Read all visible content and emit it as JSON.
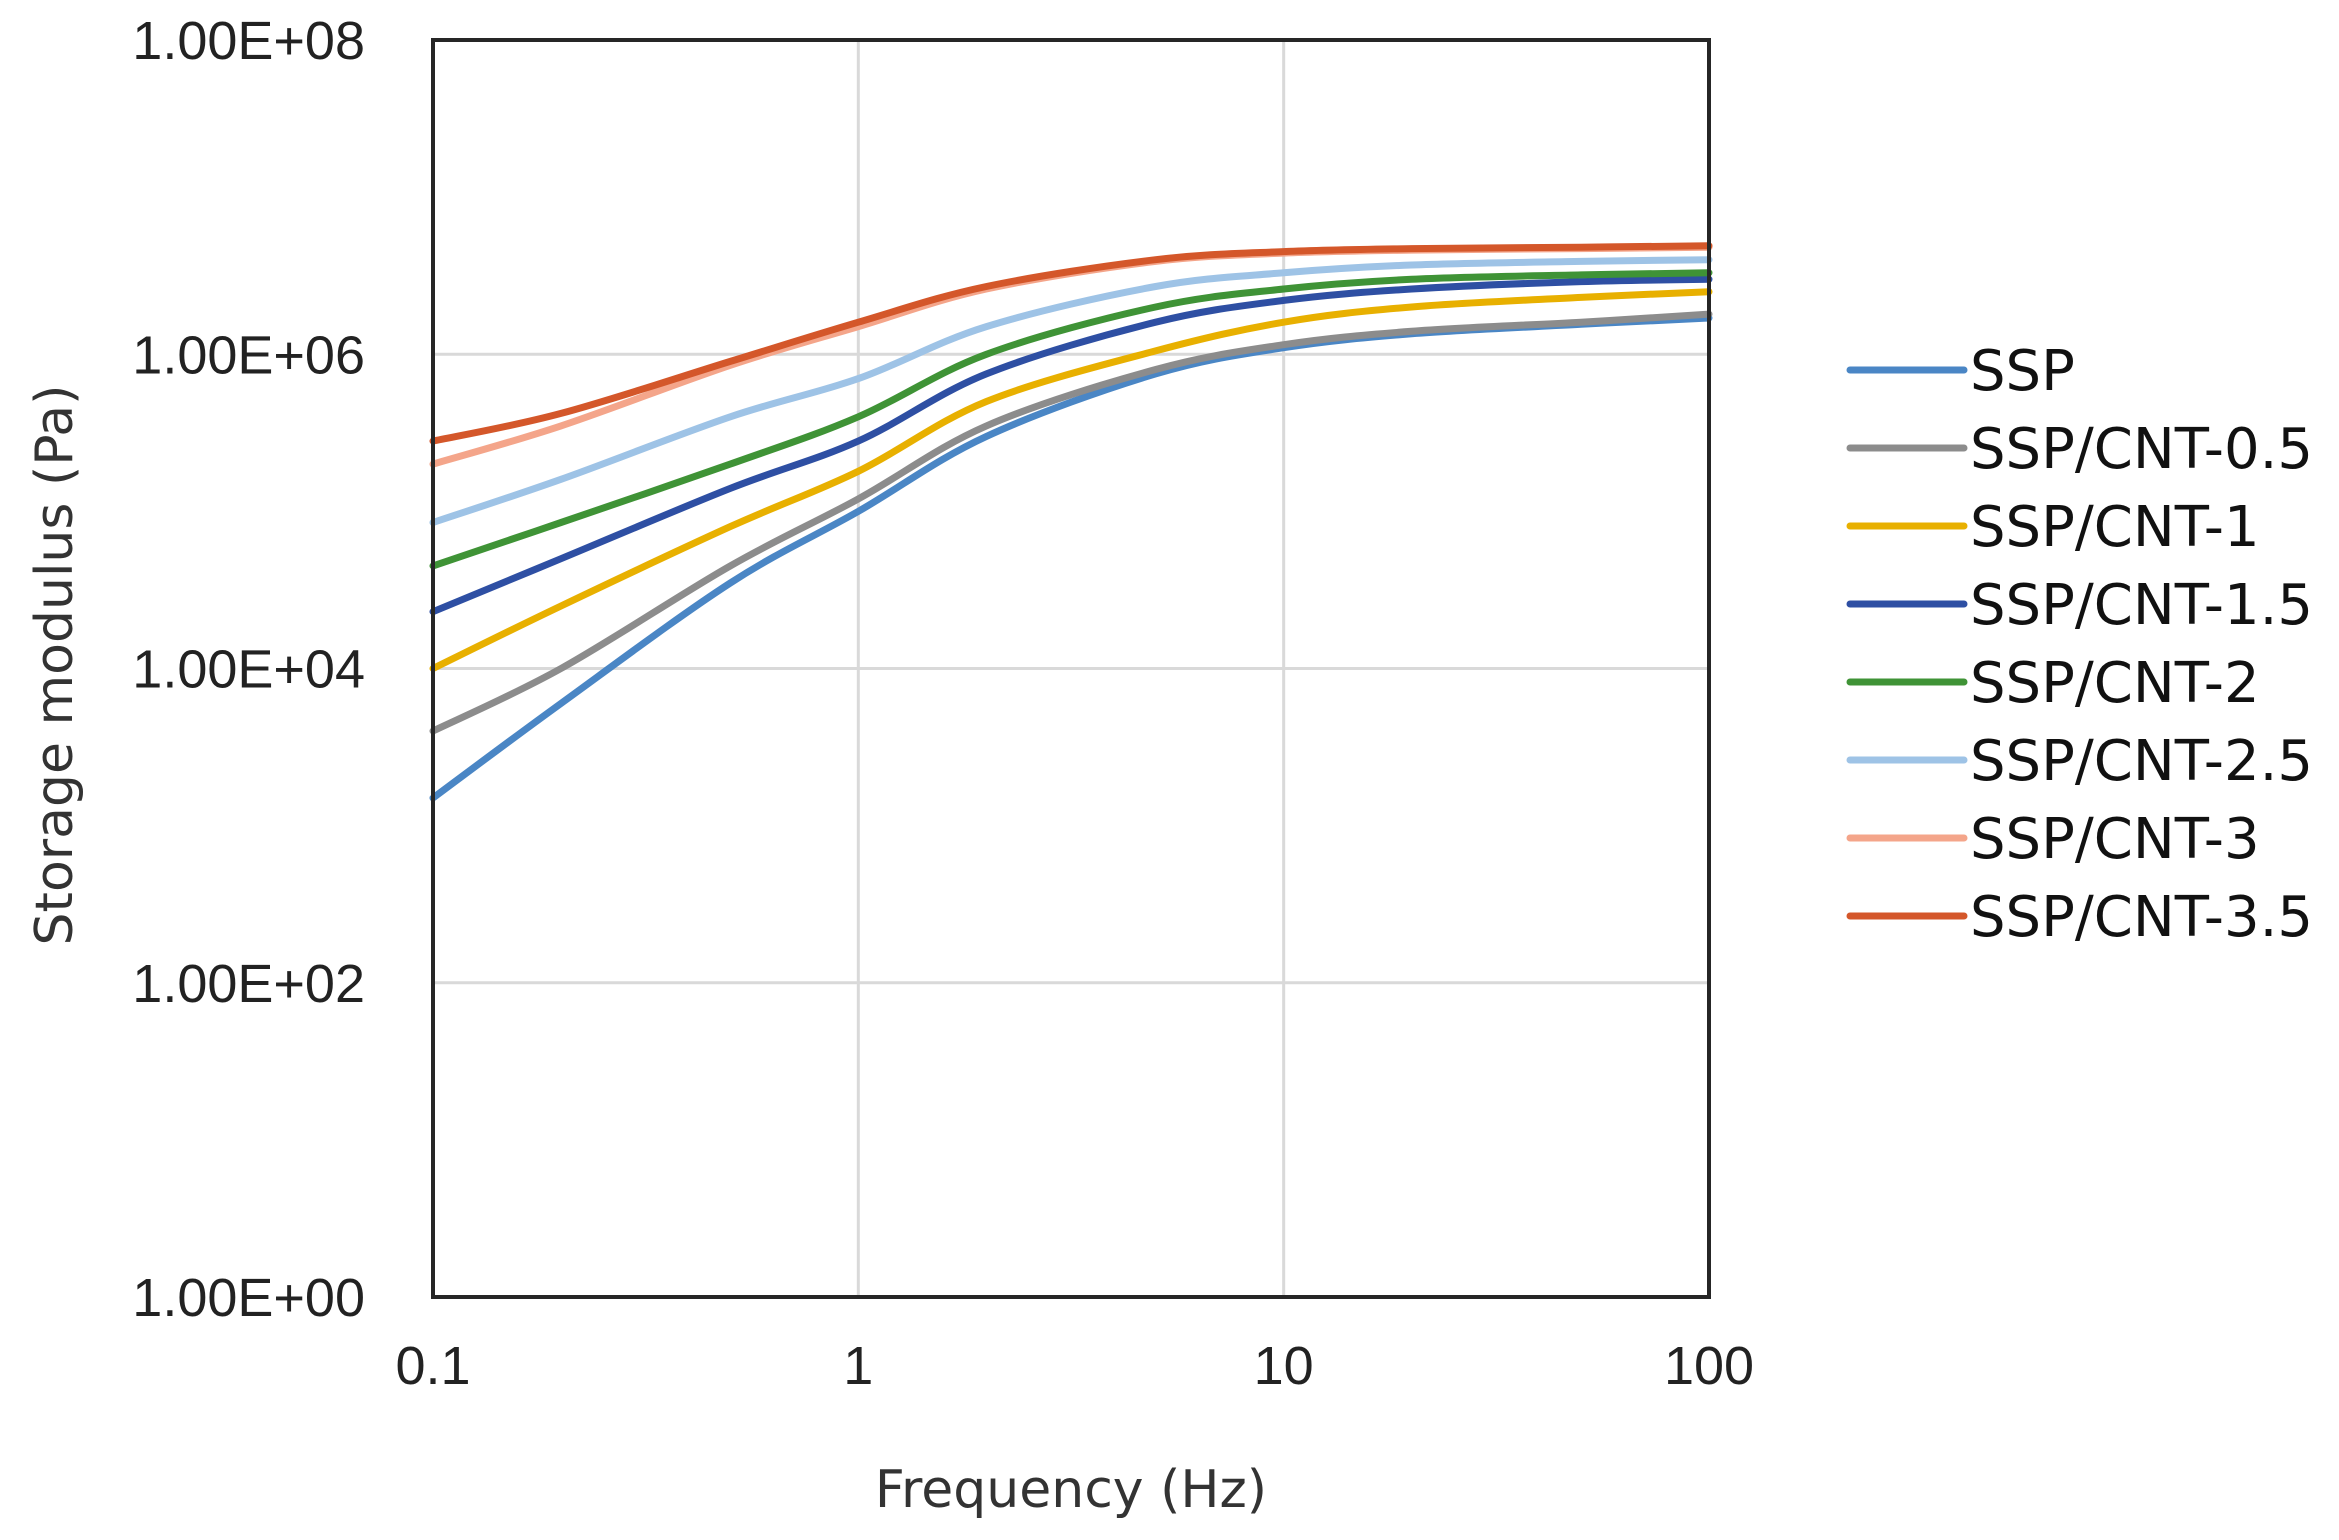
{
  "chart_data": {
    "type": "line",
    "title": "",
    "xlabel": "Frequency (Hz)",
    "ylabel": "Storage modulus (Pa)",
    "xscale": "log",
    "yscale": "log",
    "xlim": [
      0.1,
      100
    ],
    "ylim": [
      1,
      100000000
    ],
    "x_ticks": [
      {
        "value": 0.1,
        "label": "0.1"
      },
      {
        "value": 1,
        "label": "1"
      },
      {
        "value": 10,
        "label": "10"
      },
      {
        "value": 100,
        "label": "100"
      }
    ],
    "y_ticks": [
      {
        "value": 1,
        "label": "1.00E+00"
      },
      {
        "value": 100,
        "label": "1.00E+02"
      },
      {
        "value": 10000,
        "label": "1.00E+04"
      },
      {
        "value": 1000000,
        "label": "1.00E+06"
      },
      {
        "value": 100000000,
        "label": "1.00E+08"
      }
    ],
    "grid": true,
    "legend_position": "right",
    "x": [
      0.1,
      0.2,
      0.5,
      1,
      2,
      5,
      10,
      20,
      50,
      100
    ],
    "series": [
      {
        "name": "SSP",
        "color": "#4a86c5",
        "values": [
          1500,
          6000,
          35000,
          100000,
          300000,
          750000,
          1100000,
          1350000,
          1550000,
          1700000
        ]
      },
      {
        "name": "SSP/CNT-0.5",
        "color": "#8c8c8c",
        "values": [
          4000,
          10000,
          45000,
          120000,
          350000,
          800000,
          1150000,
          1400000,
          1600000,
          1800000
        ]
      },
      {
        "name": "SSP/CNT-1",
        "color": "#e8b000",
        "values": [
          10000,
          25000,
          80000,
          180000,
          500000,
          1050000,
          1600000,
          2000000,
          2300000,
          2500000
        ]
      },
      {
        "name": "SSP/CNT-1.5",
        "color": "#2e4fa3",
        "values": [
          23000,
          50000,
          140000,
          280000,
          750000,
          1600000,
          2200000,
          2600000,
          2900000,
          3000000
        ]
      },
      {
        "name": "SSP/CNT-2",
        "color": "#3f9336",
        "values": [
          45000,
          85000,
          200000,
          400000,
          1000000,
          2000000,
          2600000,
          3000000,
          3200000,
          3300000
        ]
      },
      {
        "name": "SSP/CNT-2.5",
        "color": "#9ec3e6",
        "values": [
          85000,
          160000,
          400000,
          700000,
          1500000,
          2700000,
          3300000,
          3700000,
          3900000,
          4000000
        ]
      },
      {
        "name": "SSP/CNT-3",
        "color": "#f4a58a",
        "values": [
          200000,
          350000,
          850000,
          1500000,
          2600000,
          3900000,
          4400000,
          4600000,
          4700000,
          4800000
        ]
      },
      {
        "name": "SSP/CNT-3.5",
        "color": "#d4572a",
        "values": [
          280000,
          420000,
          900000,
          1600000,
          2700000,
          4000000,
          4500000,
          4700000,
          4800000,
          4900000
        ]
      }
    ]
  }
}
